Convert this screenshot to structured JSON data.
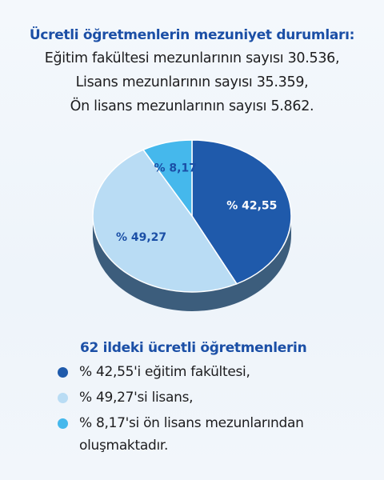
{
  "header": {
    "title": "Ücretli öğretmenlerin mezuniyet durumları:",
    "lines": [
      "Eğitim fakültesi mezunlarının sayısı 30.536,",
      "Lisans mezunlarının sayısı 35.359,",
      "Ön lisans mezunlarının sayısı 5.862."
    ]
  },
  "chart_data": {
    "type": "pie",
    "slices": [
      {
        "label": "% 42,55",
        "value": 42.55,
        "color": "#1f5aab"
      },
      {
        "label": "% 49,27",
        "value": 49.27,
        "color": "#b9dcf4"
      },
      {
        "label": "% 8,17",
        "value": 8.17,
        "color": "#45b8ec"
      }
    ],
    "side_color": "#3c5d7c"
  },
  "legend": {
    "title": "62 ildeki ücretli öğretmenlerin",
    "items": [
      {
        "text": "% 42,55'i eğitim fakültesi,",
        "color": "#1f5aab"
      },
      {
        "text": "% 49,27'si lisans,",
        "color": "#b9dcf4"
      },
      {
        "text": "% 8,17'si ön lisans mezunlarından oluşmaktadır.",
        "color": "#45b8ec"
      }
    ]
  }
}
